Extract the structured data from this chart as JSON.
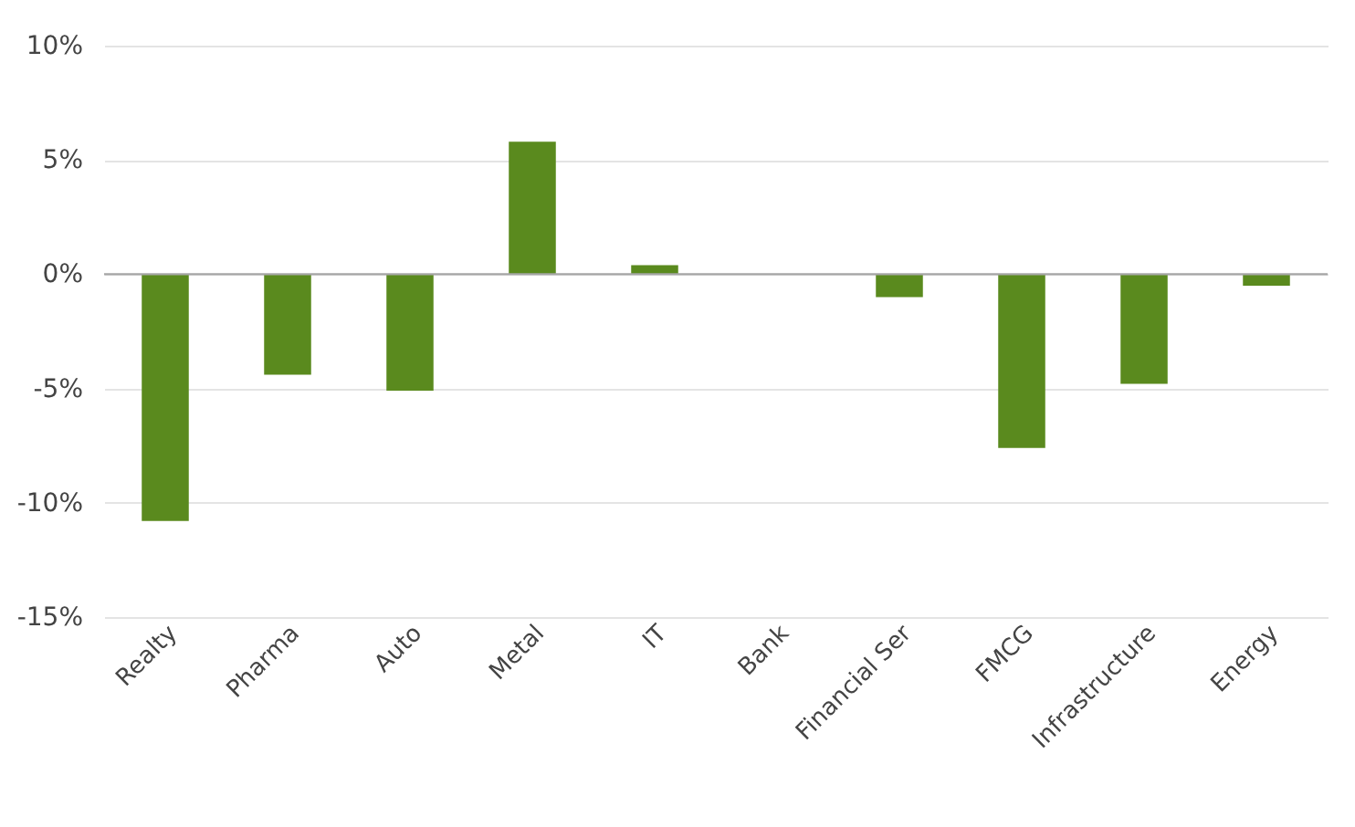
{
  "chart_data": {
    "type": "bar",
    "categories": [
      "Realty",
      "Pharma",
      "Auto",
      "Metal",
      "IT",
      "Bank",
      "Financial Ser",
      "FMCG",
      "Infrastructure",
      "Energy"
    ],
    "values": [
      -10.8,
      -4.4,
      -5.1,
      5.8,
      0.4,
      0,
      -1.0,
      -7.6,
      -4.8,
      -0.5
    ],
    "color": "#5a8a1e",
    "ylim": [
      -15,
      10
    ],
    "yticks": [
      {
        "value": -15,
        "label": "-15%"
      },
      {
        "value": -10,
        "label": "-10%"
      },
      {
        "value": -5,
        "label": "-5%"
      },
      {
        "value": 0,
        "label": "0%"
      },
      {
        "value": 5,
        "label": "5%"
      },
      {
        "value": 10,
        "label": "10%"
      }
    ],
    "grid": "y"
  }
}
